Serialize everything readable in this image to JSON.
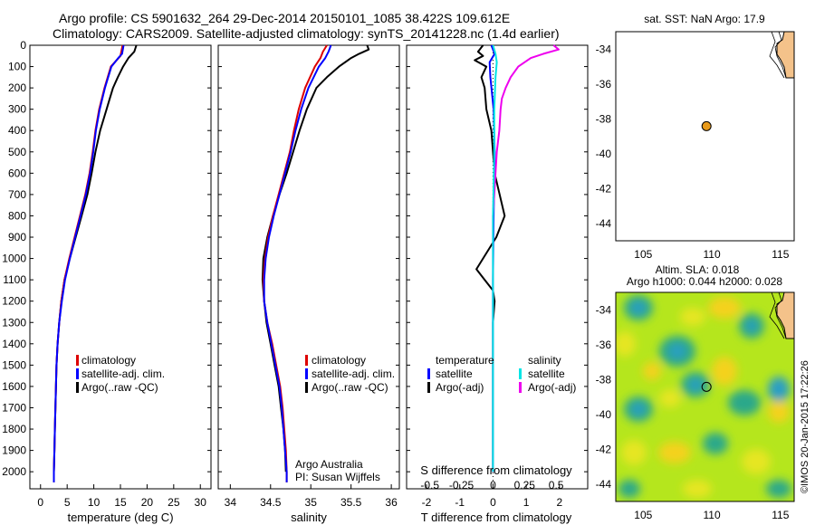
{
  "header": {
    "line1": "Argo profile: CS 5901632_264 29-Dec-2014 20150101_1085 38.422S 109.612E",
    "line2": "Climatology: CARS2009. Satellite-adjusted climatology: synTS_20141228.nc (1.4d earlier)"
  },
  "depth_ticks": [
    "0",
    "100",
    "200",
    "300",
    "400",
    "500",
    "600",
    "700",
    "800",
    "900",
    "1000",
    "1100",
    "1200",
    "1300",
    "1400",
    "1500",
    "1600",
    "1700",
    "1800",
    "1900",
    "2000"
  ],
  "legends": {
    "temperature": {
      "items": [
        "climatology",
        "satellite-adj. clim.",
        "Argo(..raw -QC)"
      ]
    },
    "salinity": {
      "items": [
        "climatology",
        "satellite-adj. clim.",
        "Argo(..raw -QC)"
      ]
    },
    "difference": {
      "col1_title": "temperature",
      "col1_items": [
        "satellite",
        "Argo(-adj)"
      ],
      "col2_title": "salinity",
      "col2_items": [
        "satellite",
        "Argo(-adj)"
      ]
    }
  },
  "notes": {
    "institution": "Argo Australia",
    "pi": "PI: Susan Wijffels"
  },
  "side": {
    "sst_title": "sat. SST: NaN Argo: 17.9",
    "sla_title1": "Altim. SLA: 0.018",
    "sla_title2": "Argo h1000: 0.044 h2000: 0.028",
    "credit": "©IMOS 20-Jan-2015 17:22:26"
  },
  "colors": {
    "climatology": "#dd0000",
    "satellite": "#0000ff",
    "argo": "#000000",
    "sal_satellite": "#00e5e5",
    "sal_argo": "#ee00ee",
    "land": "#f4c28a",
    "marker": "#e89a1a"
  },
  "chart_data": [
    {
      "type": "line",
      "name": "temperature",
      "xlabel": "temperature (deg C)",
      "ylabel": "",
      "xlim": [
        -2,
        32
      ],
      "ylim": [
        2080,
        0
      ],
      "xticks": [
        "0",
        "5",
        "10",
        "15",
        "20",
        "25",
        "30"
      ],
      "series": [
        {
          "name": "climatology",
          "depth": [
            0,
            50,
            100,
            200,
            300,
            400,
            500,
            600,
            700,
            800,
            900,
            1000,
            1100,
            1200,
            1300,
            1400,
            1500,
            1600,
            1700,
            1800,
            1900,
            2000,
            2050
          ],
          "values": [
            15.4,
            15.0,
            13.2,
            12.0,
            11.0,
            10.3,
            9.8,
            9.2,
            8.4,
            7.4,
            6.4,
            5.4,
            4.5,
            3.9,
            3.5,
            3.2,
            3.0,
            2.9,
            2.8,
            2.7,
            2.6,
            2.5,
            2.5
          ]
        },
        {
          "name": "satellite-adj. clim.",
          "depth": [
            0,
            40,
            60,
            100,
            200,
            300,
            400,
            500,
            600,
            700,
            800,
            900,
            1000,
            1100,
            1200,
            1300,
            1400,
            1500,
            1600,
            1700,
            1800,
            1900,
            2000,
            2050
          ],
          "values": [
            15.6,
            15.3,
            14.6,
            13.3,
            12.1,
            11.1,
            10.4,
            9.9,
            9.3,
            8.5,
            7.5,
            6.5,
            5.5,
            4.6,
            4.0,
            3.5,
            3.2,
            3.0,
            2.9,
            2.8,
            2.7,
            2.6,
            2.5,
            2.5
          ]
        },
        {
          "name": "Argo(..raw -QC)",
          "depth": [
            0,
            30,
            60,
            100,
            150,
            200,
            250,
            300,
            400,
            500,
            600,
            700,
            800,
            900,
            1000,
            1100,
            1200,
            1300,
            1400,
            1500,
            1600,
            1700,
            1800,
            1900,
            2000
          ],
          "values": [
            18.0,
            17.6,
            16.5,
            15.5,
            14.5,
            13.6,
            13.0,
            12.4,
            11.2,
            10.3,
            9.6,
            8.8,
            7.7,
            6.6,
            5.5,
            4.5,
            3.9,
            3.5,
            3.2,
            3.0,
            2.9,
            2.8,
            2.7,
            2.6,
            2.5
          ]
        }
      ]
    },
    {
      "type": "line",
      "name": "salinity",
      "xlabel": "salinity",
      "ylabel": "",
      "xlim": [
        33.85,
        36.1
      ],
      "ylim": [
        2080,
        0
      ],
      "xticks": [
        "34",
        "34.5",
        "35",
        "35.5",
        "36"
      ],
      "series": [
        {
          "name": "climatology",
          "depth": [
            0,
            30,
            60,
            100,
            200,
            300,
            400,
            500,
            600,
            700,
            800,
            900,
            1000,
            1100,
            1200,
            1300,
            1400,
            1500,
            1600,
            1700,
            1800,
            1900,
            2000,
            2050
          ],
          "values": [
            35.2,
            35.15,
            35.12,
            35.05,
            34.93,
            34.85,
            34.79,
            34.74,
            34.67,
            34.6,
            34.53,
            34.47,
            34.43,
            34.41,
            34.42,
            34.46,
            34.52,
            34.57,
            34.62,
            34.65,
            34.67,
            34.69,
            34.7,
            34.7
          ]
        },
        {
          "name": "satellite-adj. clim.",
          "depth": [
            0,
            30,
            60,
            100,
            200,
            300,
            400,
            500,
            600,
            700,
            800,
            900,
            1000,
            1100,
            1200,
            1300,
            1400,
            1500,
            1600,
            1700,
            1800,
            1900,
            2000,
            2050
          ],
          "values": [
            35.25,
            35.22,
            35.18,
            35.1,
            34.97,
            34.88,
            34.81,
            34.75,
            34.68,
            34.61,
            34.54,
            34.48,
            34.44,
            34.42,
            34.42,
            34.46,
            34.51,
            34.56,
            34.61,
            34.64,
            34.66,
            34.68,
            34.7,
            34.7
          ]
        },
        {
          "name": "Argo(..raw -QC)",
          "depth": [
            0,
            20,
            40,
            60,
            100,
            150,
            200,
            300,
            400,
            500,
            600,
            700,
            800,
            900,
            1000,
            1100,
            1200,
            1300,
            1400,
            1500,
            1600,
            1700,
            1800,
            1900,
            2000
          ],
          "values": [
            35.7,
            35.72,
            35.6,
            35.5,
            35.35,
            35.2,
            35.07,
            34.95,
            34.86,
            34.78,
            34.7,
            34.61,
            34.53,
            34.46,
            34.41,
            34.4,
            34.42,
            34.45,
            34.5,
            34.55,
            34.6,
            34.63,
            34.66,
            34.68,
            34.69
          ]
        }
      ]
    },
    {
      "type": "line",
      "name": "difference",
      "xlabel": "T difference from climatology",
      "xlabel_top": "S difference from climatology",
      "xlim": [
        -2.6,
        2.85
      ],
      "ylim": [
        2080,
        0
      ],
      "xticks": [
        "-2",
        "-1",
        "0",
        "1",
        "2"
      ],
      "xticks_top": [
        "-0.5",
        "-0.25",
        "0",
        "0.25",
        "0.5"
      ],
      "series": [
        {
          "name": "temperature satellite",
          "depth": [
            0,
            40,
            80,
            150,
            300,
            500,
            800,
            1100,
            1300,
            1600,
            2000
          ],
          "values": [
            -0.05,
            0.05,
            -0.1,
            -0.08,
            0.02,
            0.05,
            0.02,
            0.0,
            0.0,
            0.0,
            0.0
          ]
        },
        {
          "name": "temperature Argo(-adj)",
          "depth": [
            0,
            30,
            50,
            70,
            100,
            150,
            200,
            300,
            400,
            600,
            800,
            900,
            1000,
            1050,
            1100,
            1150,
            1200,
            1300,
            1600,
            2000
          ],
          "values": [
            -0.3,
            -0.45,
            -0.3,
            -0.55,
            -0.2,
            -0.35,
            -0.25,
            -0.2,
            -0.05,
            0.05,
            0.35,
            0.1,
            -0.3,
            -0.5,
            -0.25,
            0.0,
            0.05,
            0.0,
            0.0,
            0.0
          ]
        },
        {
          "name": "salinity satellite",
          "depth": [
            0,
            40,
            80,
            150,
            300,
            500,
            800,
            1000,
            1300,
            1600,
            2000
          ],
          "values": [
            0.0,
            0.02,
            0.03,
            0.02,
            0.01,
            0.01,
            0.0,
            0.0,
            0.0,
            0.0,
            0.0
          ]
        },
        {
          "name": "salinity Argo(-adj)",
          "depth": [
            0,
            20,
            40,
            60,
            100,
            150,
            200,
            250,
            300,
            400,
            500,
            600,
            700,
            800,
            900,
            1000,
            1200,
            1500,
            2000
          ],
          "values": [
            0.48,
            0.52,
            0.4,
            0.3,
            0.2,
            0.14,
            0.1,
            0.07,
            0.06,
            0.05,
            0.03,
            0.02,
            0.01,
            0.0,
            0.0,
            0.0,
            0.0,
            0.0,
            0.0
          ]
        }
      ]
    },
    {
      "type": "scatter",
      "name": "sst-map",
      "xlim": [
        103,
        116
      ],
      "ylim": [
        -45,
        -33
      ],
      "xticks": [
        "105",
        "110",
        "115"
      ],
      "yticks": [
        "-34",
        "-36",
        "-38",
        "-40",
        "-42",
        "-44"
      ],
      "points": [
        {
          "lon": 109.612,
          "lat": -38.422
        }
      ]
    },
    {
      "type": "heatmap",
      "name": "sla-map",
      "xlim": [
        103,
        116
      ],
      "ylim": [
        -45,
        -33
      ],
      "xticks": [
        "105",
        "110",
        "115"
      ],
      "yticks": [
        "-34",
        "-36",
        "-38",
        "-40",
        "-42",
        "-44"
      ],
      "points": [
        {
          "lon": 109.612,
          "lat": -38.422
        }
      ]
    }
  ]
}
